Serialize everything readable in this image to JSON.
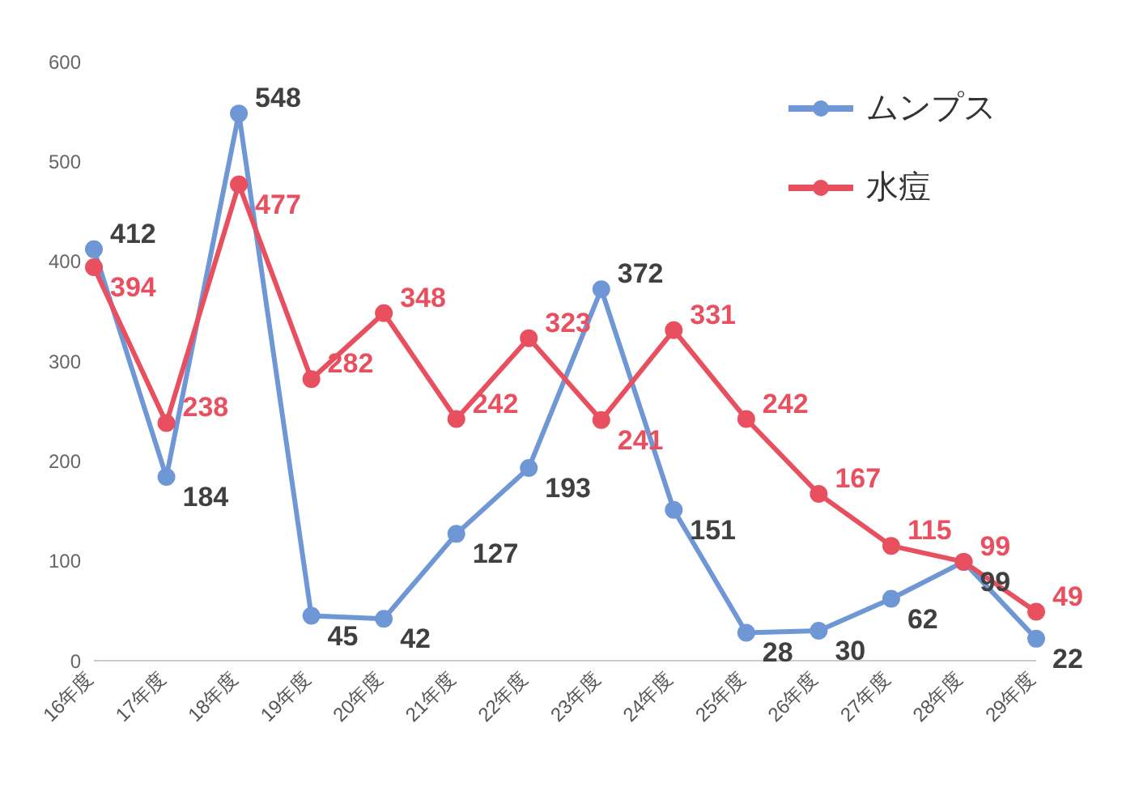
{
  "chart_data": {
    "type": "line",
    "categories": [
      "16年度",
      "17年度",
      "18年度",
      "19年度",
      "20年度",
      "21年度",
      "22年度",
      "23年度",
      "24年度",
      "25年度",
      "26年度",
      "27年度",
      "28年度",
      "29年度"
    ],
    "series": [
      {
        "name": "ムンプス",
        "color": "#6f97d6",
        "values": [
          412,
          184,
          548,
          45,
          42,
          127,
          193,
          372,
          151,
          28,
          30,
          62,
          99,
          22
        ]
      },
      {
        "name": "水痘",
        "color": "#e8505f",
        "values": [
          394,
          238,
          477,
          282,
          348,
          242,
          323,
          241,
          331,
          242,
          167,
          115,
          99,
          49
        ]
      }
    ],
    "ylim": [
      0,
      600
    ],
    "yticks": [
      0,
      100,
      200,
      300,
      400,
      500,
      600
    ],
    "grid": false,
    "legend": "top right",
    "marker": "circle",
    "line_style": "solid",
    "data_labels": true
  }
}
